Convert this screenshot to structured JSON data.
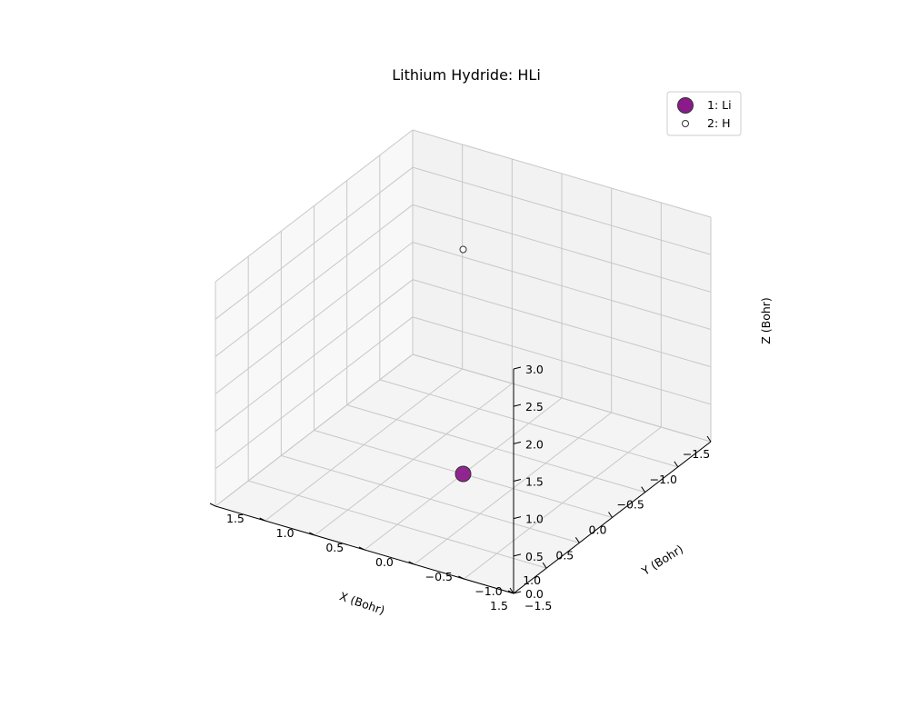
{
  "chart_data": {
    "type": "scatter",
    "projection": "3d",
    "title": "Lithium Hydride: HLi",
    "xlabel": "X (Bohr)",
    "ylabel": "Y (Bohr)",
    "zlabel": "Z (Bohr)",
    "xlim": [
      -1.5,
      1.5
    ],
    "ylim": [
      -1.5,
      1.5
    ],
    "zlim": [
      0,
      3.0
    ],
    "x_ticks": [
      "−1.5",
      "−1.0",
      "−0.5",
      "0.0",
      "0.5",
      "1.0",
      "1.5"
    ],
    "y_ticks": [
      "−1.5",
      "−1.0",
      "−0.5",
      "0.0",
      "0.5",
      "1.0",
      "1.5"
    ],
    "z_ticks": [
      "0.0",
      "0.5",
      "1.0",
      "1.5",
      "2.0",
      "2.5",
      "3.0"
    ],
    "grid": true,
    "legend_position": "top-right",
    "series": [
      {
        "name": "1: Li",
        "x": [
          0.0
        ],
        "y": [
          0.0
        ],
        "z": [
          0.0
        ],
        "color": "#8b1a8b",
        "size": "large"
      },
      {
        "name": "2: H",
        "x": [
          0.0
        ],
        "y": [
          0.0
        ],
        "z": [
          3.0
        ],
        "color": "#ffffff",
        "size": "small"
      }
    ]
  }
}
